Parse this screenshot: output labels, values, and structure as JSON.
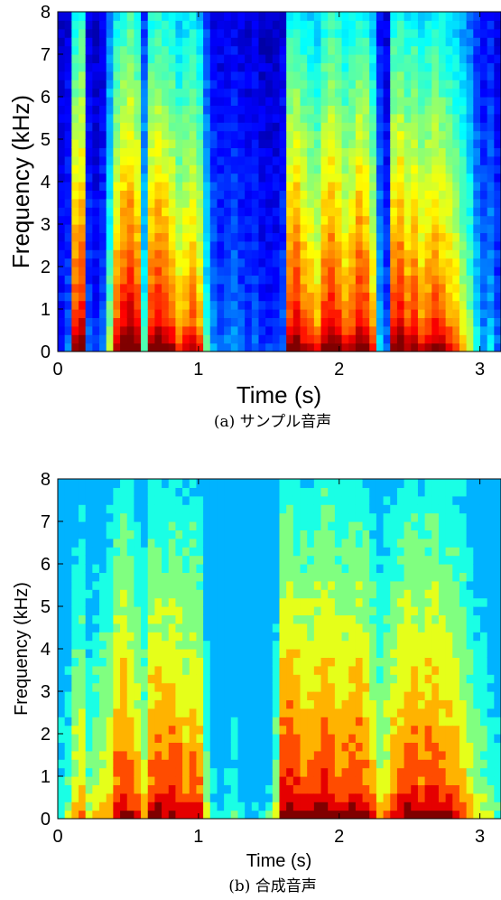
{
  "chart_data": [
    {
      "type": "heatmap",
      "name": "spectrogram-a",
      "xlabel": "Time (s)",
      "ylabel": "Frequency (kHz)",
      "xlim": [
        0,
        3.15
      ],
      "ylim": [
        0,
        8
      ],
      "x_ticks": [
        0,
        1,
        2,
        3
      ],
      "x_tick_labels": [
        "0",
        "1",
        "2",
        "3"
      ],
      "y_ticks": [
        0,
        1,
        2,
        3,
        4,
        5,
        6,
        7,
        8
      ],
      "y_tick_labels": [
        "0",
        "1",
        "2",
        "3",
        "4",
        "5",
        "6",
        "7",
        "8"
      ],
      "caption": "(a) サンプル音声",
      "colormap": "jet",
      "energy_profile": [
        0.15,
        0.2,
        0.85,
        0.9,
        0.2,
        0.15,
        0.2,
        0.5,
        0.8,
        0.9,
        0.95,
        0.85,
        0.4,
        0.85,
        0.9,
        0.85,
        0.8,
        0.7,
        0.75,
        0.8,
        0.7,
        0.4,
        0.25,
        0.2,
        0.22,
        0.25,
        0.2,
        0.18,
        0.2,
        0.15,
        0.15,
        0.15,
        0.2,
        0.85,
        0.9,
        0.8,
        0.75,
        0.7,
        0.85,
        0.9,
        0.85,
        0.75,
        0.8,
        0.9,
        0.85,
        0.7,
        0.3,
        0.2,
        0.85,
        0.9,
        0.8,
        0.85,
        0.75,
        0.8,
        0.85,
        0.8,
        0.75,
        0.7,
        0.6,
        0.5,
        0.35,
        0.25,
        0.3,
        0.2
      ]
    },
    {
      "type": "heatmap",
      "name": "spectrogram-b",
      "xlabel": "Time (s)",
      "ylabel": "Frequency (kHz)",
      "xlim": [
        0,
        3.15
      ],
      "ylim": [
        0,
        8
      ],
      "x_ticks": [
        0,
        1,
        2,
        3
      ],
      "x_tick_labels": [
        "0",
        "1",
        "2",
        "3"
      ],
      "y_ticks": [
        0,
        1,
        2,
        3,
        4,
        5,
        6,
        7,
        8
      ],
      "y_tick_labels": [
        "0",
        "1",
        "2",
        "3",
        "4",
        "5",
        "6",
        "7",
        "8"
      ],
      "caption": "(b) 合成音声",
      "colormap": "jet-banded",
      "energy_profile": [
        0.4,
        0.45,
        0.6,
        0.65,
        0.5,
        0.55,
        0.6,
        0.65,
        0.8,
        0.85,
        0.8,
        0.7,
        0.6,
        0.8,
        0.85,
        0.8,
        0.85,
        0.8,
        0.75,
        0.8,
        0.75,
        0.5,
        0.35,
        0.3,
        0.35,
        0.4,
        0.3,
        0.25,
        0.3,
        0.3,
        0.35,
        0.5,
        0.85,
        0.9,
        0.85,
        0.8,
        0.8,
        0.85,
        0.9,
        0.85,
        0.8,
        0.8,
        0.85,
        0.85,
        0.8,
        0.7,
        0.6,
        0.65,
        0.75,
        0.8,
        0.85,
        0.85,
        0.8,
        0.85,
        0.85,
        0.8,
        0.8,
        0.75,
        0.7,
        0.6,
        0.55,
        0.5,
        0.45,
        0.4
      ]
    }
  ]
}
